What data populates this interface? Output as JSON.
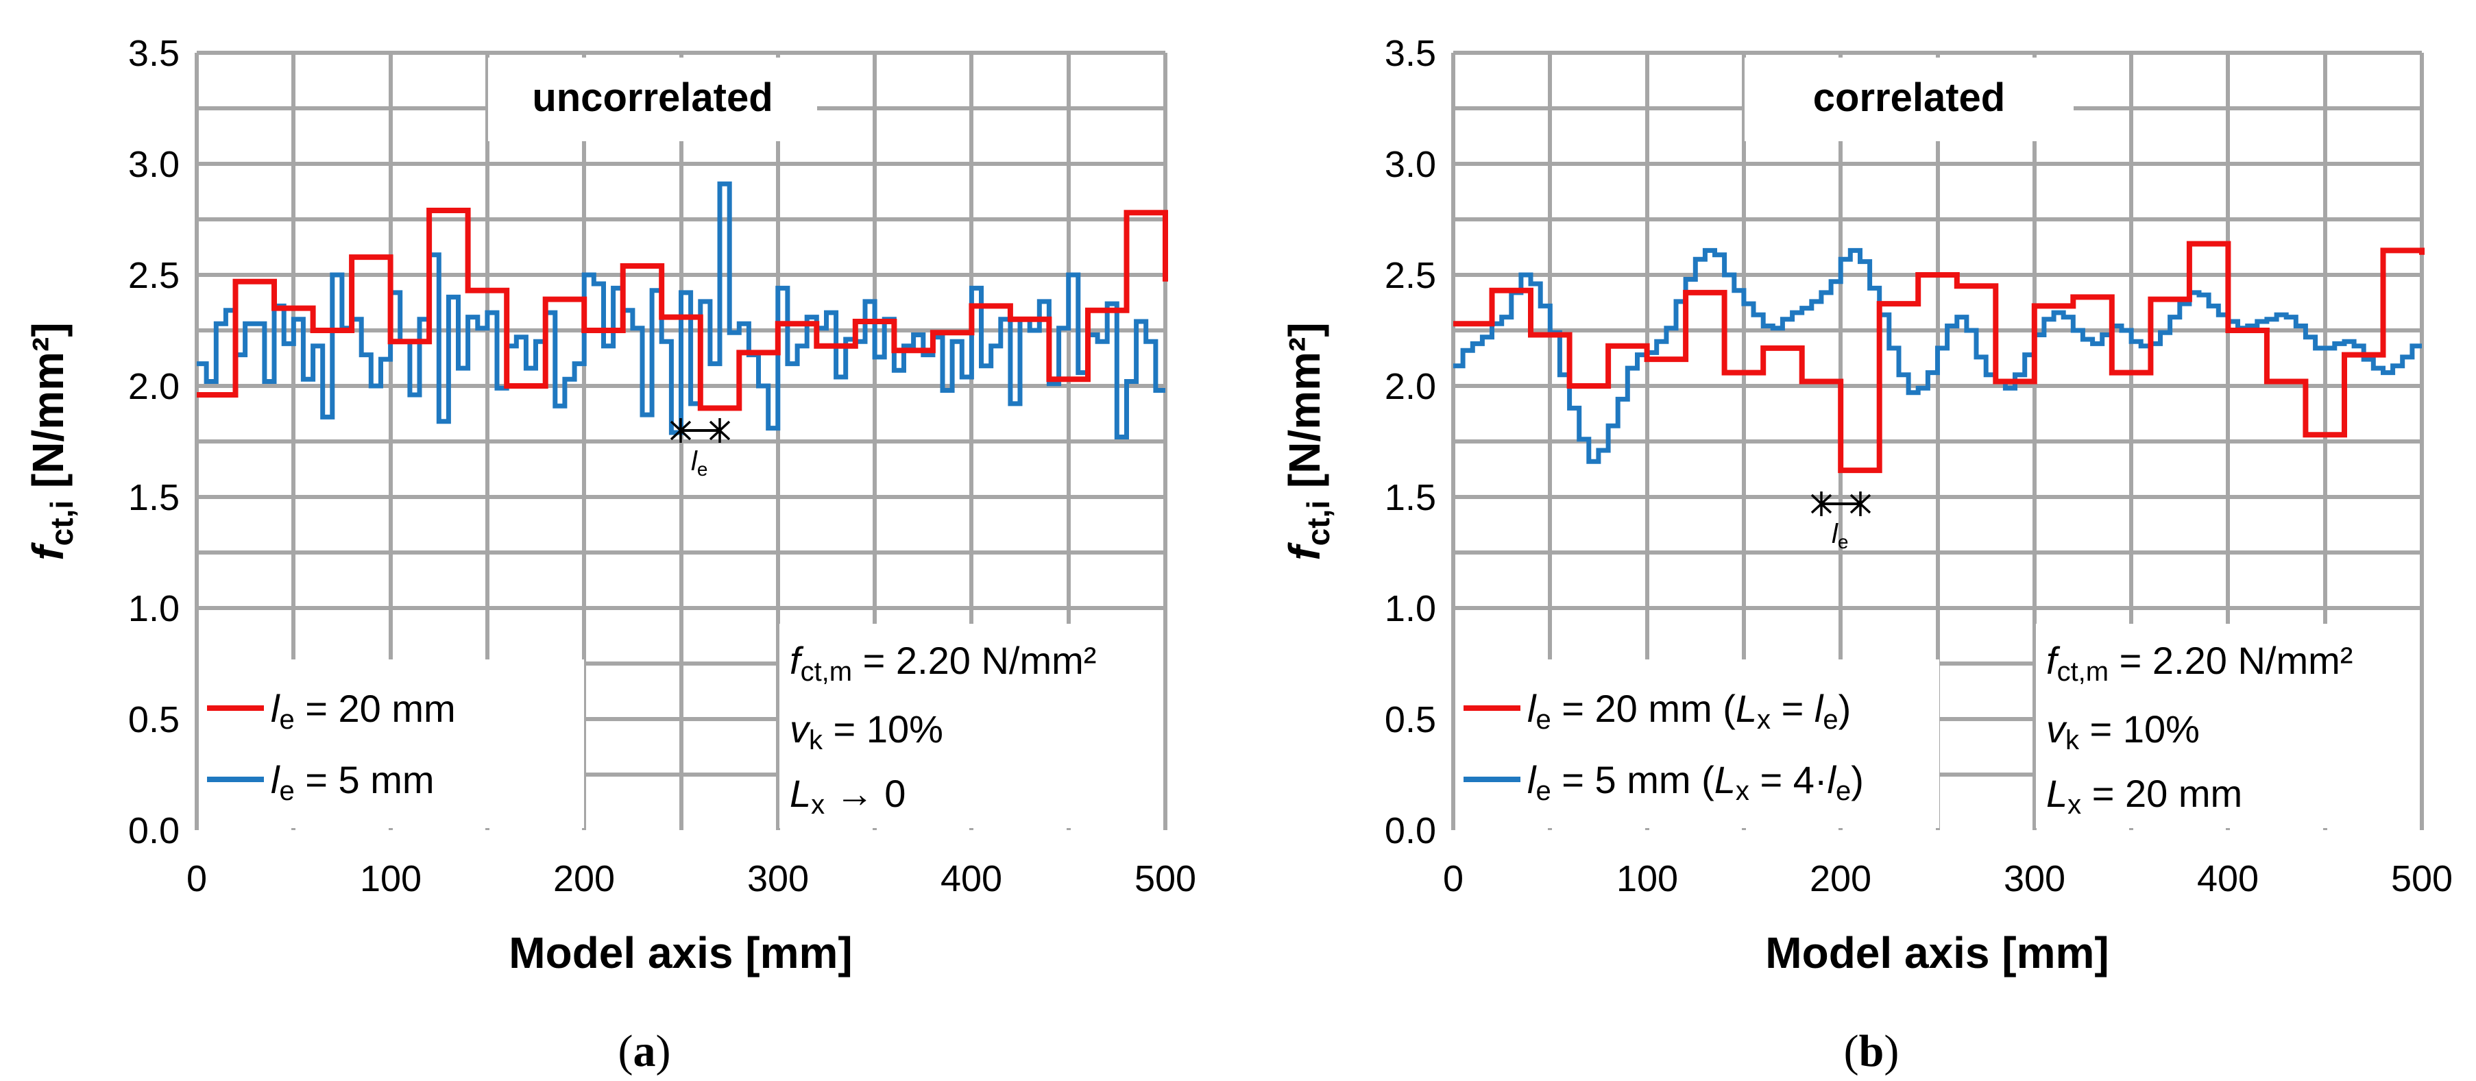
{
  "chart_data": [
    {
      "panel_id": "a",
      "type": "line",
      "step": true,
      "title": "uncorrelated",
      "caption": "(a)",
      "xlabel": "Model axis [mm]",
      "ylabel": "fct,i [N/mm²]",
      "ylabel_parts": [
        "f",
        "ct,i",
        " [N/mm²]"
      ],
      "xlim": [
        0,
        500
      ],
      "ylim": [
        0.0,
        3.5
      ],
      "xticks": [
        "0",
        "100",
        "200",
        "300",
        "400",
        "500"
      ],
      "yticks": [
        "0.0",
        "0.5",
        "1.0",
        "1.5",
        "2.0",
        "2.5",
        "3.0",
        "3.5"
      ],
      "grid": true,
      "legend_position": "bottom-left",
      "legend": [
        {
          "series": 0,
          "parts": [
            "l",
            "e",
            " = 20 mm"
          ]
        },
        {
          "series": 1,
          "parts": [
            "l",
            "e",
            " = 5 mm"
          ]
        }
      ],
      "annotation": {
        "lines": [
          [
            "f",
            "ct,m",
            " = 2.20 N/mm²"
          ],
          [
            "v",
            "k",
            " = 10%"
          ],
          [
            "L",
            "x",
            " → 0"
          ]
        ]
      },
      "le_marker": {
        "x_start": 250,
        "x_end": 270,
        "y": 1.8,
        "label": [
          "l",
          "e"
        ]
      },
      "series": [
        {
          "name": "le = 20 mm",
          "color": "#ee1111",
          "element_size": 20,
          "values": [
            1.96,
            2.47,
            2.35,
            2.25,
            2.58,
            2.2,
            2.79,
            2.43,
            2.0,
            2.39,
            2.25,
            2.54,
            2.31,
            1.9,
            2.15,
            2.28,
            2.18,
            2.29,
            2.16,
            2.24,
            2.36,
            2.3,
            2.03,
            2.34,
            2.78,
            2.47
          ]
        },
        {
          "name": "le = 5 mm",
          "color": "#1f78c0",
          "element_size": 5,
          "values": [
            2.1,
            2.02,
            2.28,
            2.34,
            2.14,
            2.28,
            2.28,
            2.02,
            2.36,
            2.19,
            2.3,
            2.03,
            2.18,
            1.86,
            2.5,
            2.26,
            2.3,
            2.14,
            2.0,
            2.12,
            2.42,
            2.2,
            1.96,
            2.3,
            2.59,
            1.84,
            2.4,
            2.08,
            2.31,
            2.26,
            2.33,
            1.99,
            2.18,
            2.22,
            2.08,
            2.2,
            2.33,
            1.91,
            2.03,
            2.1,
            2.5,
            2.46,
            2.18,
            2.44,
            2.34,
            2.26,
            1.87,
            2.43,
            2.2,
            1.79,
            2.42,
            1.92,
            2.38,
            2.1,
            2.91,
            2.24,
            2.28,
            2.14,
            2.0,
            1.81,
            2.44,
            2.1,
            2.18,
            2.31,
            2.26,
            2.33,
            2.04,
            2.21,
            2.2,
            2.38,
            2.13,
            2.3,
            2.07,
            2.18,
            2.23,
            2.14,
            2.22,
            1.98,
            2.2,
            2.04,
            2.44,
            2.09,
            2.18,
            2.3,
            1.92,
            2.3,
            2.25,
            2.38,
            2.01,
            2.26,
            2.5,
            2.06,
            2.23,
            2.2,
            2.37,
            1.77,
            2.02,
            2.29,
            2.2,
            1.98
          ]
        }
      ]
    },
    {
      "panel_id": "b",
      "type": "line",
      "step": true,
      "title": "correlated",
      "caption": "(b)",
      "xlabel": "Model axis [mm]",
      "ylabel": "fct,i [N/mm²]",
      "ylabel_parts": [
        "f",
        "ct,i",
        " [N/mm²]"
      ],
      "xlim": [
        0,
        500
      ],
      "ylim": [
        0.0,
        3.5
      ],
      "xticks": [
        "0",
        "100",
        "200",
        "300",
        "400",
        "500"
      ],
      "yticks": [
        "0.0",
        "0.5",
        "1.0",
        "1.5",
        "2.0",
        "2.5",
        "3.0",
        "3.5"
      ],
      "grid": true,
      "legend_position": "bottom-left",
      "legend": [
        {
          "series": 0,
          "parts": [
            "l",
            "e",
            " = 20 mm (",
            "L",
            "x",
            " = ",
            "l",
            "e",
            ")"
          ]
        },
        {
          "series": 1,
          "parts": [
            "l",
            "e",
            " = 5 mm (",
            "L",
            "x",
            " = 4·",
            "l",
            "e",
            ")"
          ]
        }
      ],
      "annotation": {
        "lines": [
          [
            "f",
            "ct,m",
            " = 2.20 N/mm²"
          ],
          [
            "v",
            "k",
            " = 10%"
          ],
          [
            "L",
            "x",
            " = 20 mm"
          ]
        ]
      },
      "le_marker": {
        "x_start": 190,
        "x_end": 210,
        "y": 1.46,
        "label": [
          "l",
          "e"
        ]
      },
      "series": [
        {
          "name": "le = 20 mm (Lx = le)",
          "color": "#ee1111",
          "element_size": 20,
          "values": [
            2.28,
            2.43,
            2.23,
            2.0,
            2.18,
            2.12,
            2.42,
            2.06,
            2.17,
            2.02,
            1.62,
            2.37,
            2.5,
            2.45,
            2.02,
            2.36,
            2.4,
            2.06,
            2.39,
            2.64,
            2.25,
            2.02,
            1.78,
            2.14,
            2.61,
            2.59
          ]
        },
        {
          "name": "le = 5 mm (Lx = 4·le)",
          "color": "#1f78c0",
          "element_size": 5,
          "values": [
            2.09,
            2.16,
            2.19,
            2.22,
            2.28,
            2.31,
            2.42,
            2.5,
            2.46,
            2.36,
            2.24,
            2.05,
            1.9,
            1.76,
            1.66,
            1.71,
            1.82,
            1.94,
            2.08,
            2.14,
            2.15,
            2.2,
            2.26,
            2.38,
            2.48,
            2.57,
            2.61,
            2.59,
            2.5,
            2.43,
            2.37,
            2.32,
            2.27,
            2.26,
            2.3,
            2.33,
            2.35,
            2.38,
            2.42,
            2.47,
            2.57,
            2.61,
            2.56,
            2.44,
            2.32,
            2.17,
            2.05,
            1.97,
            1.99,
            2.06,
            2.17,
            2.27,
            2.31,
            2.25,
            2.13,
            2.05,
            2.02,
            1.99,
            2.05,
            2.14,
            2.23,
            2.3,
            2.33,
            2.31,
            2.25,
            2.21,
            2.19,
            2.23,
            2.27,
            2.25,
            2.2,
            2.18,
            2.19,
            2.24,
            2.31,
            2.37,
            2.42,
            2.41,
            2.36,
            2.32,
            2.29,
            2.26,
            2.27,
            2.29,
            2.3,
            2.32,
            2.31,
            2.27,
            2.22,
            2.17,
            2.17,
            2.19,
            2.2,
            2.18,
            2.12,
            2.08,
            2.06,
            2.09,
            2.13,
            2.18
          ]
        }
      ]
    }
  ]
}
